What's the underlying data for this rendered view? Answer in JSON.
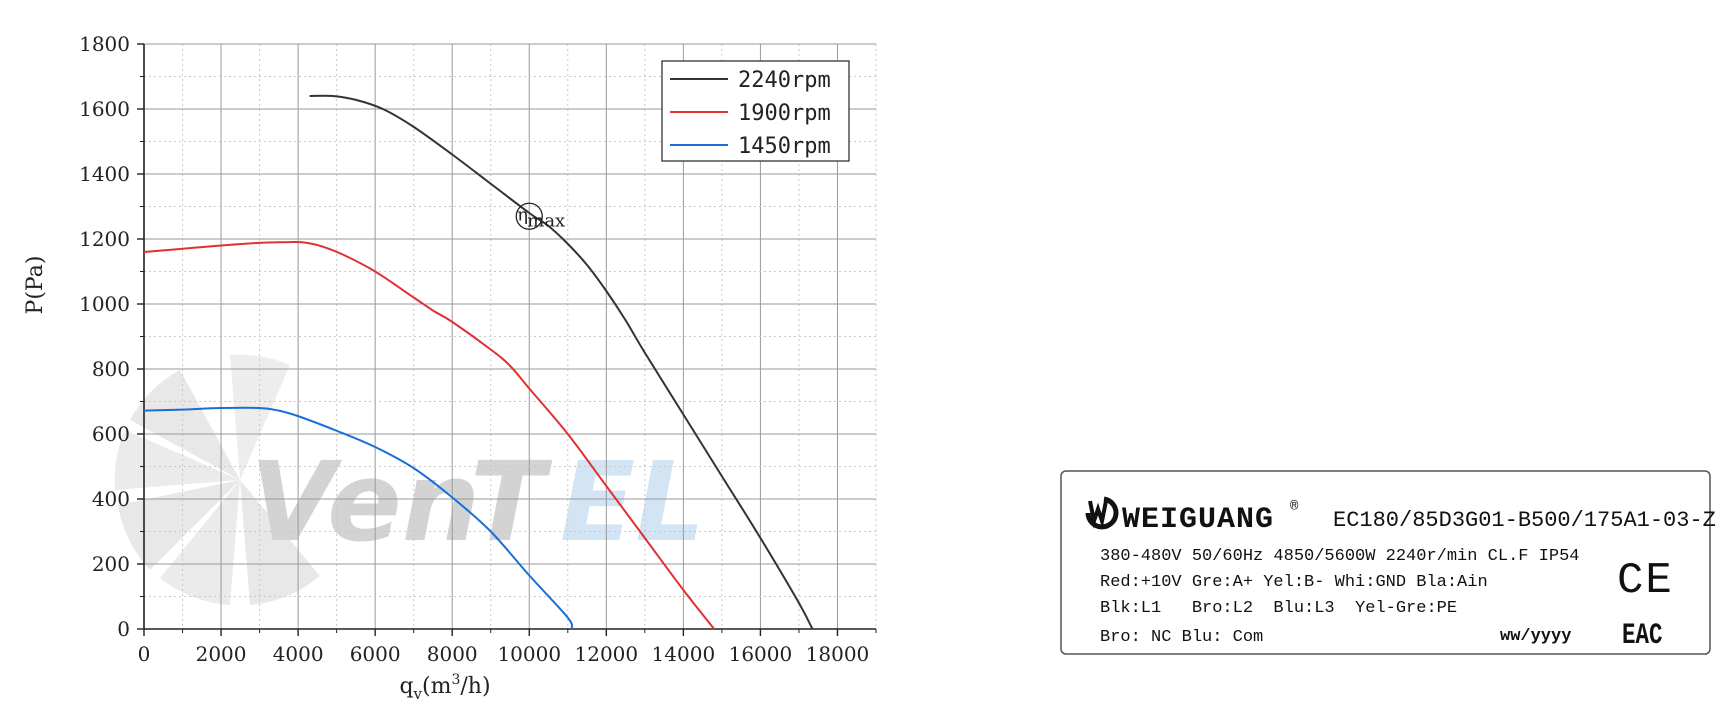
{
  "chart_data": {
    "type": "line",
    "xlabel": "q",
    "xlabel_sub": "v",
    "xlabel_unit_open": "(m",
    "xlabel_sup": "3",
    "xlabel_unit_close": "/h)",
    "ylabel": "P(Pa)",
    "xlim": [
      0,
      19000
    ],
    "ylim": [
      0,
      1800
    ],
    "x_ticks": [
      0,
      2000,
      4000,
      6000,
      8000,
      10000,
      12000,
      14000,
      16000,
      18000
    ],
    "y_ticks": [
      0,
      200,
      400,
      600,
      800,
      1000,
      1200,
      1400,
      1600,
      1800
    ],
    "x_minor_step": 1000,
    "y_minor_step": 100,
    "grid": true,
    "legend_position": "top-right",
    "series": [
      {
        "name": "2240rpm",
        "color": "#333333",
        "points": [
          [
            4300,
            1640
          ],
          [
            4900,
            1640
          ],
          [
            5500,
            1628
          ],
          [
            6200,
            1600
          ],
          [
            7000,
            1545
          ],
          [
            8000,
            1460
          ],
          [
            9000,
            1370
          ],
          [
            10000,
            1280
          ],
          [
            10500,
            1240
          ],
          [
            11000,
            1185
          ],
          [
            11500,
            1120
          ],
          [
            12000,
            1040
          ],
          [
            12500,
            950
          ],
          [
            13000,
            850
          ],
          [
            14000,
            660
          ],
          [
            15000,
            470
          ],
          [
            16000,
            280
          ],
          [
            17000,
            80
          ],
          [
            17350,
            0
          ]
        ]
      },
      {
        "name": "1900rpm",
        "color": "#e03030",
        "points": [
          [
            0,
            1160
          ],
          [
            1000,
            1170
          ],
          [
            2000,
            1180
          ],
          [
            3000,
            1188
          ],
          [
            3600,
            1190
          ],
          [
            4100,
            1190
          ],
          [
            4600,
            1178
          ],
          [
            5200,
            1150
          ],
          [
            6000,
            1100
          ],
          [
            7000,
            1020
          ],
          [
            7500,
            980
          ],
          [
            8000,
            945
          ],
          [
            9000,
            860
          ],
          [
            9500,
            810
          ],
          [
            10000,
            740
          ],
          [
            11000,
            600
          ],
          [
            12000,
            440
          ],
          [
            13000,
            280
          ],
          [
            14000,
            120
          ],
          [
            14800,
            0
          ]
        ]
      },
      {
        "name": "1450rpm",
        "color": "#1a6fd6",
        "points": [
          [
            0,
            672
          ],
          [
            1000,
            675
          ],
          [
            2000,
            680
          ],
          [
            3000,
            680
          ],
          [
            3500,
            672
          ],
          [
            4000,
            655
          ],
          [
            5000,
            610
          ],
          [
            6000,
            560
          ],
          [
            7000,
            495
          ],
          [
            8000,
            405
          ],
          [
            9000,
            300
          ],
          [
            10000,
            165
          ],
          [
            11000,
            35
          ],
          [
            11100,
            0
          ]
        ]
      }
    ],
    "annotation": {
      "symbol": "η",
      "subscript": "max",
      "x": 10000,
      "y": 1270
    }
  },
  "watermark": {
    "text_grey": "Ven",
    "text_grey2": "T",
    "text_blue": "EL"
  },
  "nameplate": {
    "brand": "WEIGUANG",
    "registered": "®",
    "model": "EC180/85D3G01-B500/175A1-03-Z",
    "line1": "380-480V 50/60Hz 4850/5600W 2240r/min CL.F IP54",
    "line2": "Red:+10V Gre:A+ Yel:B- Whi:GND Bla:Ain",
    "line3": "Blk:L1   Bro:L2  Blu:L3  Yel-Gre:PE",
    "line4": "Bro: NC Blu: Com",
    "date_code": "ww/yyyy",
    "ce_mark": "CE",
    "eac_mark": "EAC"
  }
}
